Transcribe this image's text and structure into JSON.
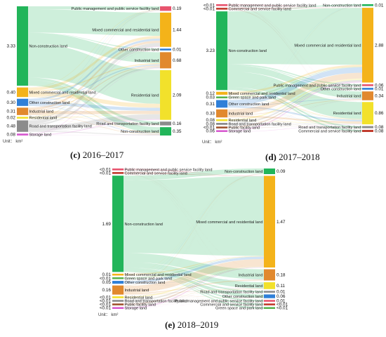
{
  "unit_label": "Unit： km²",
  "colors": {
    "Non-construction land": "#22b55a",
    "Mixed commercial and residential land": "#f4b31a",
    "Other construction land": "#2f7fd8",
    "Industrial land": "#e1892e",
    "Residential land": "#f2e12b",
    "Road and transportation facility land": "#8c8c8c",
    "Storage land": "#d75bd0",
    "Public management and public service facility land": "#e8546e",
    "Green space and park land": "#5ab34f",
    "Public facility land": "#a0522d",
    "Commercial and service facility land": "#c0392b"
  },
  "chart_data": [
    {
      "type": "sankey",
      "caption_letter": "(c)",
      "caption_text": " 2016–2017",
      "unit": "km²",
      "left_nodes": [
        {
          "name": "Non-construction land",
          "value": 3.33,
          "label": "3.33"
        },
        {
          "name": "Mixed commercial and residential land",
          "value": 0.4,
          "label": "0.40"
        },
        {
          "name": "Other construction land",
          "value": 0.3,
          "label": "0.30"
        },
        {
          "name": "Industrial land",
          "value": 0.31,
          "label": "0.31"
        },
        {
          "name": "Residential land",
          "value": 0.02,
          "label": "0.02"
        },
        {
          "name": "Road and transportation facility land",
          "value": 0.48,
          "label": "0.48"
        },
        {
          "name": "Storage land",
          "value": 0.08,
          "label": "0.08"
        }
      ],
      "right_nodes": [
        {
          "name": "Public management and public service facility land",
          "value": 0.19,
          "label": "0.19"
        },
        {
          "name": "Mixed commercial and residential land",
          "value": 1.44,
          "label": "1.44"
        },
        {
          "name": "Other construction land",
          "value": 0.01,
          "label": "0.01"
        },
        {
          "name": "Industrial land",
          "value": 0.68,
          "label": "0.68"
        },
        {
          "name": "Residential land",
          "value": 2.09,
          "label": "2.09"
        },
        {
          "name": "Road and transportation facility land",
          "value": 0.16,
          "label": "0.16"
        },
        {
          "name": "Non-construction land",
          "value": 0.35,
          "label": "0.35"
        }
      ]
    },
    {
      "type": "sankey",
      "caption_letter": "(d)",
      "caption_text": " 2017–2018",
      "unit": "km²",
      "left_nodes": [
        {
          "name": "Public management and public service facility land",
          "value": 0.005,
          "label": "<0.01"
        },
        {
          "name": "Commercial and service facility land",
          "value": 0.005,
          "label": "<0.01"
        },
        {
          "name": "Non-construction land",
          "value": 3.23,
          "label": "3.23"
        },
        {
          "name": "Mixed commercial and residential land",
          "value": 0.12,
          "label": "0.12"
        },
        {
          "name": "Green space and park land",
          "value": 0.03,
          "label": "0.03"
        },
        {
          "name": "Other construction land",
          "value": 0.31,
          "label": "0.31"
        },
        {
          "name": "Industrial land",
          "value": 0.33,
          "label": "0.33"
        },
        {
          "name": "Residential land",
          "value": 0.08,
          "label": "0.08"
        },
        {
          "name": "Road and transportation facility land",
          "value": 0.08,
          "label": "0.08"
        },
        {
          "name": "Public facility land",
          "value": 0.005,
          "label": "<0.01"
        },
        {
          "name": "Storage land",
          "value": 0.06,
          "label": "0.06"
        }
      ],
      "right_nodes": [
        {
          "name": "Non-construction land",
          "value": 0.01,
          "label": "0.01"
        },
        {
          "name": "Mixed commercial and residential land",
          "value": 2.88,
          "label": "2.88"
        },
        {
          "name": "Public management and public service facility land",
          "value": 0.06,
          "label": "0.06"
        },
        {
          "name": "Other construction land",
          "value": 0.01,
          "label": "0.01"
        },
        {
          "name": "Industrial land",
          "value": 0.34,
          "label": "0.34"
        },
        {
          "name": "Residential land",
          "value": 0.86,
          "label": "0.86"
        },
        {
          "name": "Road and transportation facility land",
          "value": 0.08,
          "label": "0.08"
        },
        {
          "name": "Commercial and service facility land",
          "value": 0.08,
          "label": "0.08"
        }
      ]
    },
    {
      "type": "sankey",
      "caption_letter": "(e)",
      "caption_text": " 2018–2019",
      "unit": "km²",
      "left_nodes": [
        {
          "name": "Public management and public service facility land",
          "value": 0.005,
          "label": "<0.01"
        },
        {
          "name": "Commercial and service facility land",
          "value": 0.005,
          "label": "<0.01"
        },
        {
          "name": "Non-construction land",
          "value": 1.69,
          "label": "1.69"
        },
        {
          "name": "Mixed commercial and residential land",
          "value": 0.01,
          "label": "0.01"
        },
        {
          "name": "Green space and park land",
          "value": 0.005,
          "label": "<0.01"
        },
        {
          "name": "Other construction land",
          "value": 0.05,
          "label": "0.05"
        },
        {
          "name": "Industrial land",
          "value": 0.16,
          "label": "0.16"
        },
        {
          "name": "Residential land",
          "value": 0.005,
          "label": "<0.01"
        },
        {
          "name": "Road and transportation facility land",
          "value": 0.005,
          "label": "<0.01"
        },
        {
          "name": "Public facility land",
          "value": 0.005,
          "label": "<0.01"
        },
        {
          "name": "Storage land",
          "value": 0.005,
          "label": "<0.01"
        }
      ],
      "right_nodes": [
        {
          "name": "Non-construction land",
          "value": 0.09,
          "label": "0.09"
        },
        {
          "name": "Mixed commercial and residential land",
          "value": 1.47,
          "label": "1.47"
        },
        {
          "name": "Industrial land",
          "value": 0.18,
          "label": "0.18"
        },
        {
          "name": "Residential land",
          "value": 0.11,
          "label": "0.11"
        },
        {
          "name": "Road and transportation facility land",
          "value": 0.01,
          "label": "0.01"
        },
        {
          "name": "Other construction land",
          "value": 0.06,
          "label": "0.06"
        },
        {
          "name": "Public management and public service facility land",
          "value": 0.01,
          "label": "0.01"
        },
        {
          "name": "Commercial and service facility land",
          "value": 0.005,
          "label": "<0.01"
        },
        {
          "name": "Green space and park land",
          "value": 0.005,
          "label": "<0.01"
        }
      ]
    }
  ]
}
